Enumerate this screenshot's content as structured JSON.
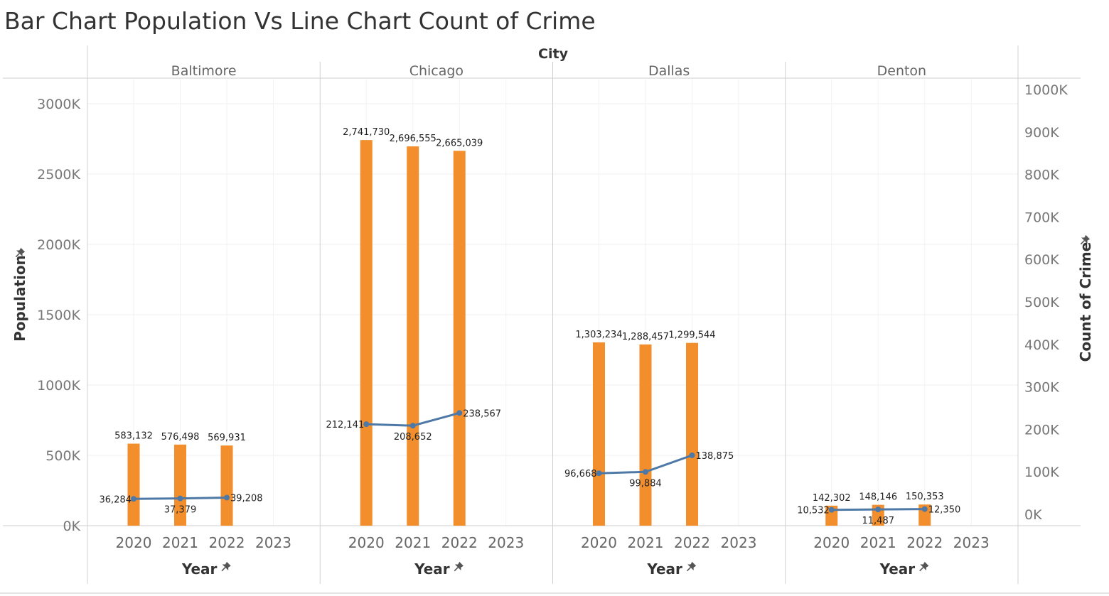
{
  "chart_data": {
    "type": "bar",
    "title": "Bar Chart Population Vs  Line Chart Count of Crime",
    "facet_label": "City",
    "panels": [
      "Baltimore",
      "Chicago",
      "Dallas",
      "Denton"
    ],
    "categories": [
      "2020",
      "2021",
      "2022",
      "2023"
    ],
    "xlabel": "Year",
    "ylabel": "Population",
    "y2label": "Count of Crime",
    "ylim": [
      0,
      3100000
    ],
    "y2lim": [
      -60000,
      1020000
    ],
    "yticks": [
      0,
      500000,
      1000000,
      1500000,
      2000000,
      2500000,
      3000000
    ],
    "ytick_labels": [
      "0K",
      "500K",
      "1000K",
      "1500K",
      "2000K",
      "2500K",
      "3000K"
    ],
    "y2ticks": [
      0,
      100000,
      200000,
      300000,
      400000,
      500000,
      600000,
      700000,
      800000,
      900000,
      1000000
    ],
    "y2tick_labels": [
      "0K",
      "100K",
      "200K",
      "300K",
      "400K",
      "500K",
      "600K",
      "700K",
      "800K",
      "900K",
      "1000K"
    ],
    "series": [
      {
        "name": "Population",
        "type": "bar",
        "color": "#F28E2B",
        "values": [
          [
            583132,
            576498,
            569931,
            null
          ],
          [
            2741730,
            2696555,
            2665039,
            null
          ],
          [
            1303234,
            1288457,
            1299544,
            null
          ],
          [
            142302,
            148146,
            150353,
            null
          ]
        ],
        "labels": [
          [
            "583,132",
            "576,498",
            "569,931",
            ""
          ],
          [
            "2,741,730",
            "2,696,555",
            "2,665,039",
            ""
          ],
          [
            "1,303,234",
            "1,288,457",
            "1,299,544",
            ""
          ],
          [
            "142,302",
            "148,146",
            "150,353",
            ""
          ]
        ]
      },
      {
        "name": "Count of Crime",
        "type": "line",
        "axis": "y2",
        "color": "#4E79A7",
        "values": [
          [
            36284,
            37379,
            39208,
            null
          ],
          [
            212141,
            208652,
            238567,
            null
          ],
          [
            96668,
            99884,
            138875,
            null
          ],
          [
            10532,
            11487,
            12350,
            null
          ]
        ],
        "labels": [
          [
            "36,284",
            "37,379",
            "39,208",
            ""
          ],
          [
            "212,141",
            "208,652",
            "238,567",
            ""
          ],
          [
            "96,668",
            "99,884",
            "138,875",
            ""
          ],
          [
            "10,532",
            "11,487",
            "12,350",
            ""
          ]
        ]
      }
    ],
    "grid": true
  }
}
